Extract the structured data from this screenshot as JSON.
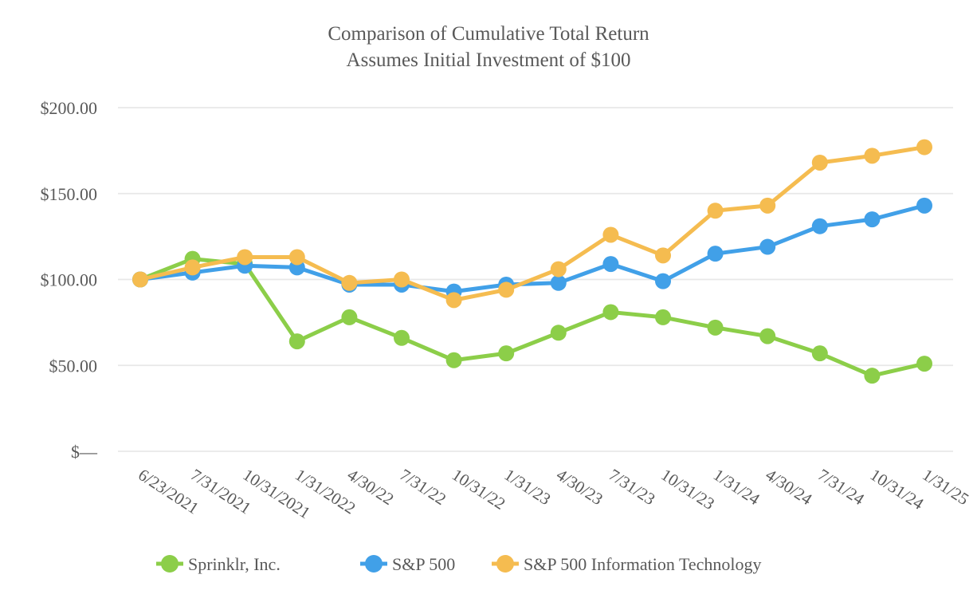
{
  "title": {
    "line1": "Comparison of Cumulative Total Return",
    "line2": "Assumes Initial Investment of $100"
  },
  "chart_data": {
    "type": "line",
    "x": [
      "6/23/2021",
      "7/31/2021",
      "10/31/2021",
      "1/31/2022",
      "4/30/22",
      "7/31/22",
      "10/31/22",
      "1/31/23",
      "4/30/23",
      "7/31/23",
      "10/31/23",
      "1/31/24",
      "4/30/24",
      "7/31/24",
      "10/31/24",
      "1/31/25"
    ],
    "series": [
      {
        "name": "Sprinklr, Inc.",
        "color": "#8CCE49",
        "values": [
          100,
          112,
          109,
          64,
          78,
          66,
          53,
          57,
          69,
          81,
          78,
          72,
          67,
          57,
          44,
          51
        ]
      },
      {
        "name": "S&P 500",
        "color": "#41A0E8",
        "values": [
          100,
          104,
          108,
          107,
          97,
          97,
          93,
          97,
          98,
          109,
          99,
          115,
          119,
          131,
          135,
          143
        ]
      },
      {
        "name": "S&P 500 Information Technology",
        "color": "#F5BC50",
        "values": [
          100,
          107,
          113,
          113,
          98,
          100,
          88,
          94,
          106,
          126,
          114,
          140,
          143,
          168,
          172,
          177
        ]
      }
    ],
    "y_ticks": [
      {
        "value": 0,
        "label": "$—"
      },
      {
        "value": 50,
        "label": "$50.00"
      },
      {
        "value": 100,
        "label": "$100.00"
      },
      {
        "value": 150,
        "label": "$150.00"
      },
      {
        "value": 200,
        "label": "$200.00"
      }
    ],
    "title": "Comparison of Cumulative Total Return",
    "subtitle": "Assumes Initial Investment of $100",
    "xlabel": "",
    "ylabel": "",
    "ylim": [
      0,
      200
    ],
    "grid": true,
    "legend_position": "bottom",
    "marker": "circle",
    "x_label_rotation_deg": 33
  },
  "colors": {
    "text": "#595959",
    "gridline": "#E8E8E8",
    "background": "#FFFFFF",
    "sprinklr": "#8CCE49",
    "sp500": "#41A0E8",
    "sp500_it": "#F5BC50"
  }
}
